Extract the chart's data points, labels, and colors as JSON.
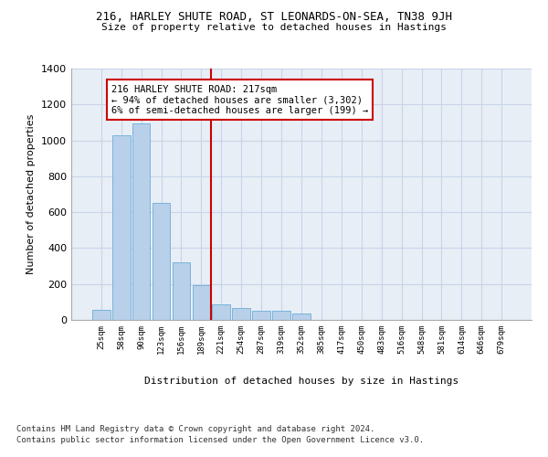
{
  "title_line1": "216, HARLEY SHUTE ROAD, ST LEONARDS-ON-SEA, TN38 9JH",
  "title_line2": "Size of property relative to detached houses in Hastings",
  "xlabel": "Distribution of detached houses by size in Hastings",
  "ylabel": "Number of detached properties",
  "categories": [
    "25sqm",
    "58sqm",
    "90sqm",
    "123sqm",
    "156sqm",
    "189sqm",
    "221sqm",
    "254sqm",
    "287sqm",
    "319sqm",
    "352sqm",
    "385sqm",
    "417sqm",
    "450sqm",
    "483sqm",
    "516sqm",
    "548sqm",
    "581sqm",
    "614sqm",
    "646sqm",
    "679sqm"
  ],
  "values": [
    55,
    1030,
    1095,
    650,
    320,
    195,
    85,
    65,
    50,
    50,
    35,
    0,
    0,
    0,
    0,
    0,
    0,
    0,
    0,
    0,
    0
  ],
  "bar_color": "#b8d0ea",
  "bar_edge_color": "#6aaed6",
  "grid_color": "#c8d4e8",
  "background_color": "#e8eef6",
  "vline_x": 5.5,
  "vline_color": "#cc0000",
  "annotation_text": "216 HARLEY SHUTE ROAD: 217sqm\n← 94% of detached houses are smaller (3,302)\n6% of semi-detached houses are larger (199) →",
  "annotation_box_color": "#ffffff",
  "annotation_box_edge": "#cc0000",
  "footer_line1": "Contains HM Land Registry data © Crown copyright and database right 2024.",
  "footer_line2": "Contains public sector information licensed under the Open Government Licence v3.0.",
  "ylim": [
    0,
    1400
  ],
  "yticks": [
    0,
    200,
    400,
    600,
    800,
    1000,
    1200,
    1400
  ]
}
